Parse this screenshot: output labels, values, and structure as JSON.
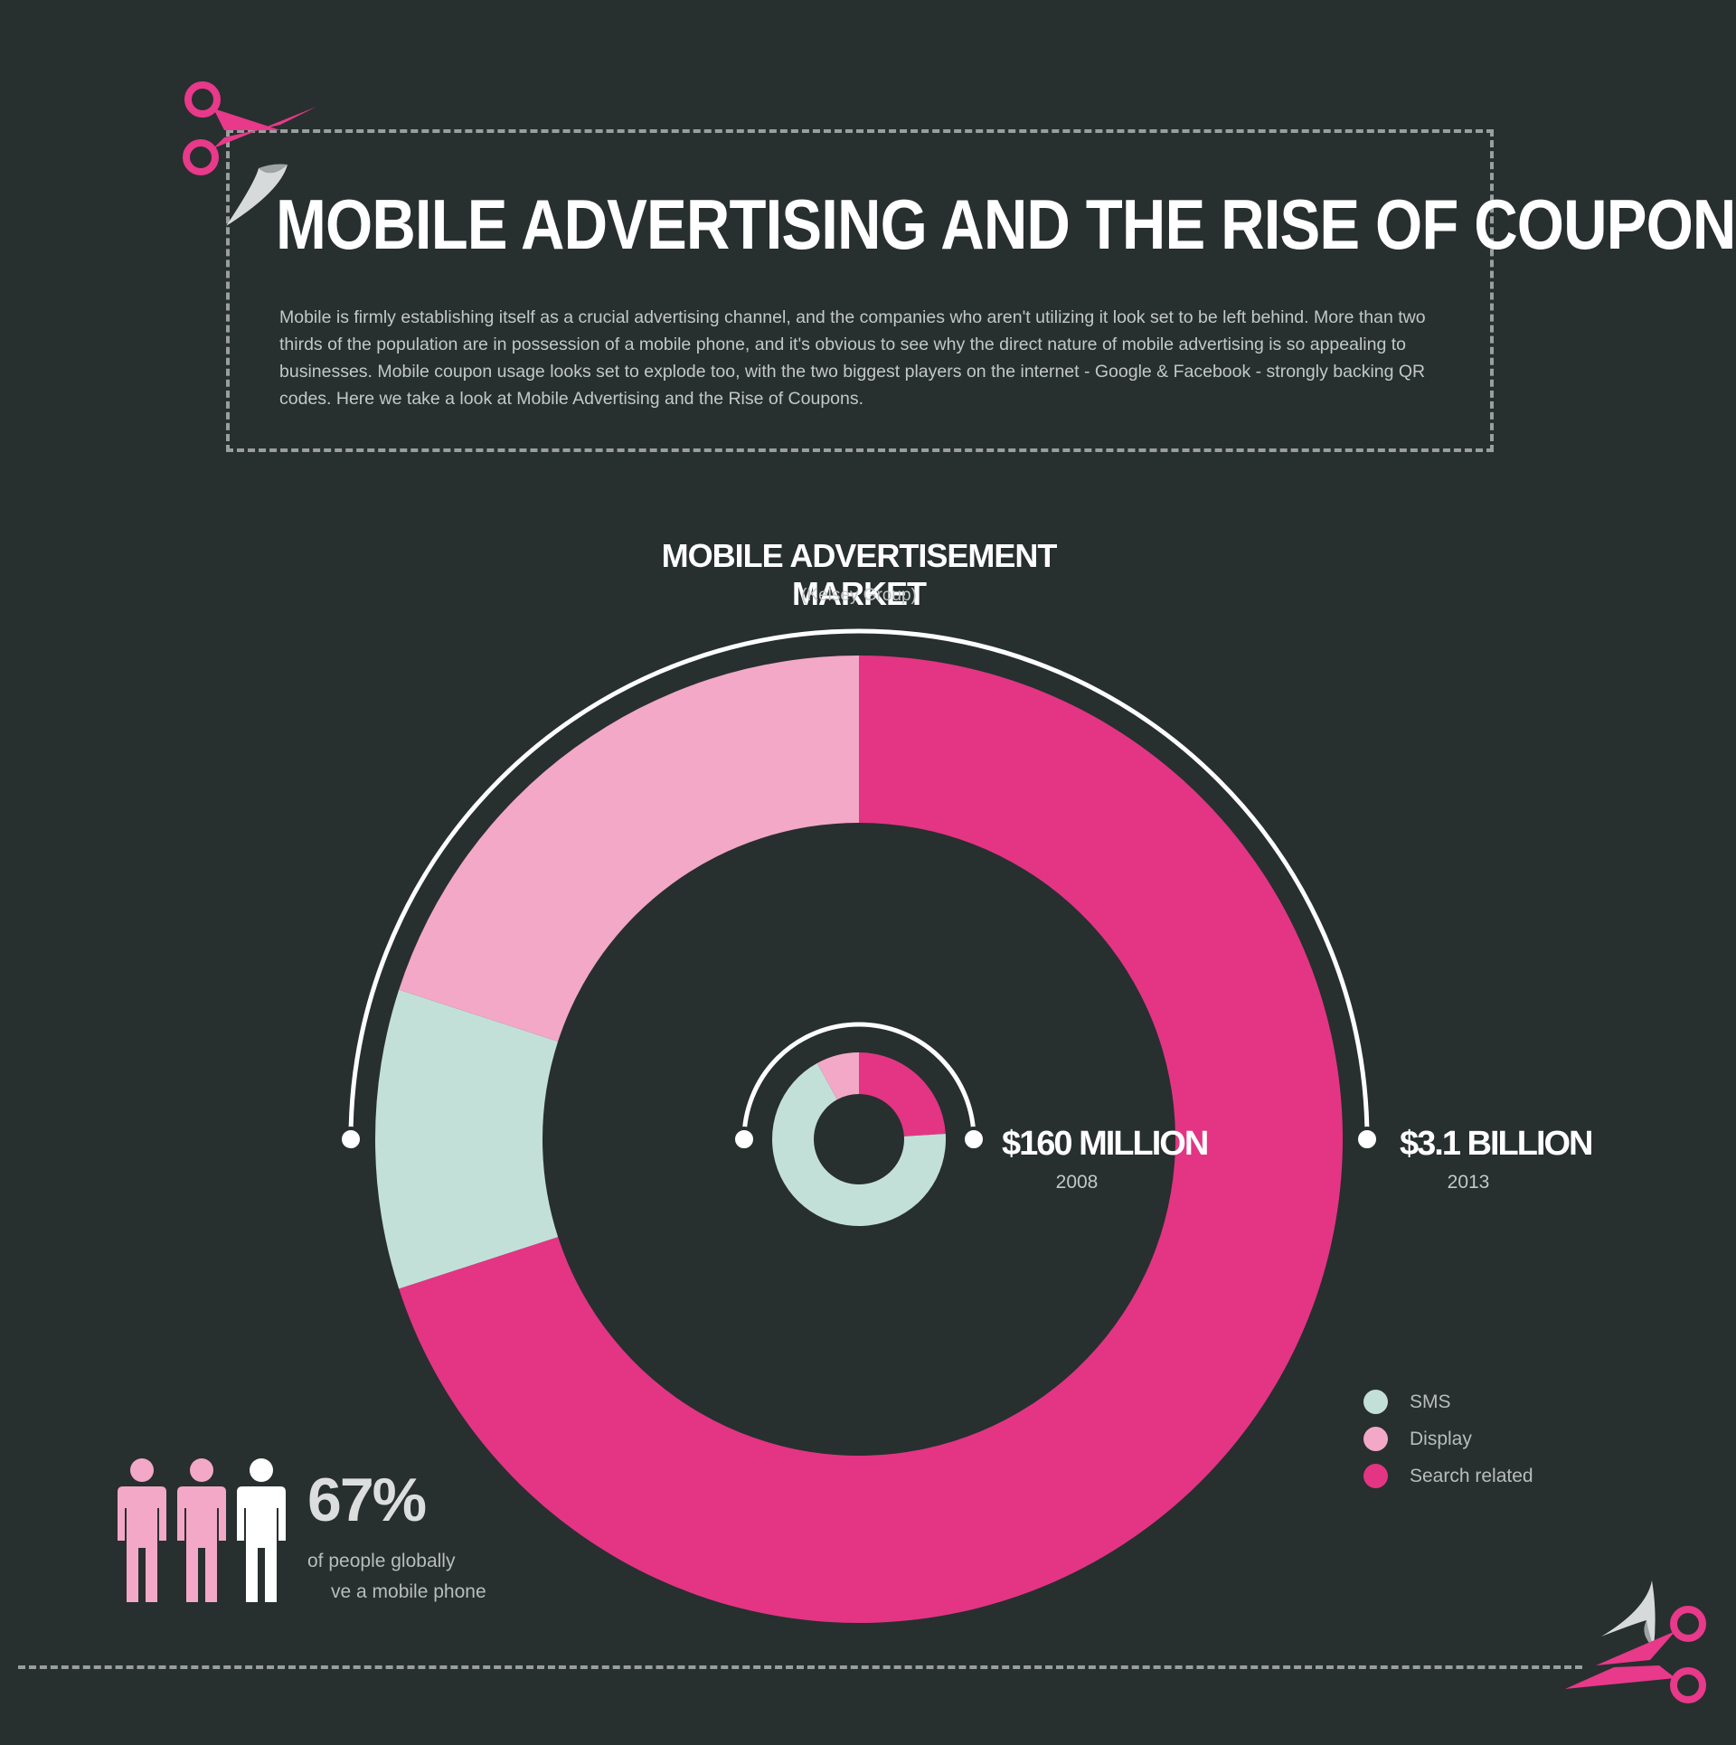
{
  "header": {
    "title": "MOBILE ADVERTISING AND THE RISE OF COUPONS",
    "intro": "Mobile is firmly establishing itself as a crucial advertising channel, and the companies who aren't utilizing it look set to be left behind. More than two thirds of the population are in possession of a mobile phone, and it's obvious to see why the direct nature of mobile advertising is so appealing to businesses. Mobile coupon usage looks set to explode too, with the two biggest players on the internet - Google & Facebook - strongly backing QR codes. Here we take a look at Mobile Advertising and the Rise of Coupons."
  },
  "colors": {
    "background": "#282f2f",
    "sms": "#c3e0d8",
    "display": "#f2a8c6",
    "search": "#e33584",
    "accent": "#e8398a"
  },
  "icons": [
    "scissors-icon",
    "person-icon"
  ],
  "chart_data": {
    "type": "donut",
    "title": "MOBILE ADVERTISEMENT MARKET",
    "subtitle": "(Kelsey Group)",
    "categories": [
      "SMS",
      "Display",
      "Search related"
    ],
    "series": [
      {
        "year": "2008",
        "total": "$160 MILLION",
        "shares": [
          0.68,
          0.08,
          0.24
        ]
      },
      {
        "year": "2013",
        "total": "$3.1 BILLION",
        "shares": [
          0.1,
          0.2,
          0.7
        ]
      }
    ]
  },
  "stat": {
    "value": "67%",
    "line1": "of people globally",
    "line2": "ve a mobile phone",
    "people_total": 3,
    "people_highlighted": 2
  }
}
